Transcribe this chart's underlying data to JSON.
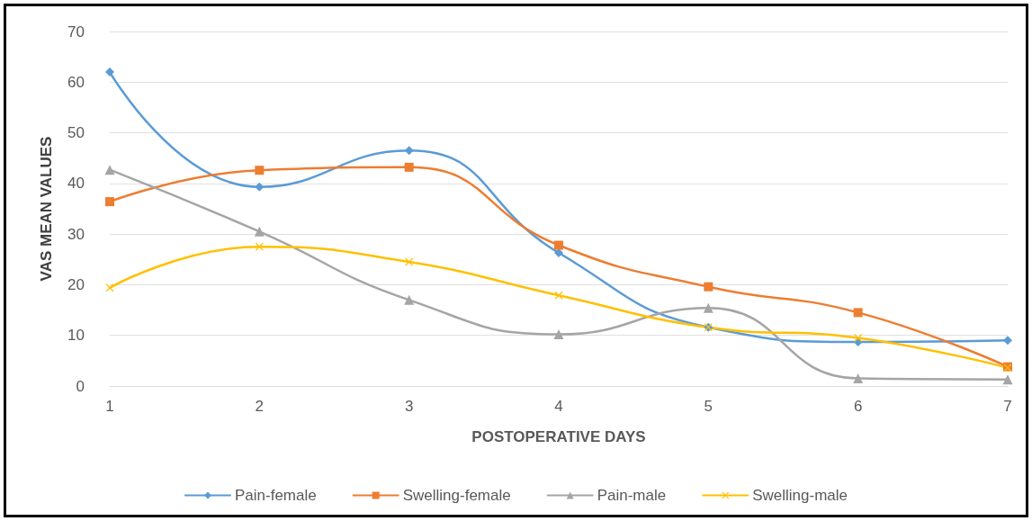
{
  "chart_data": {
    "type": "line",
    "xlabel": "POSTOPERATIVE DAYS",
    "ylabel": "VAS MEAN VALUES",
    "categories": [
      "1",
      "2",
      "3",
      "4",
      "5",
      "6",
      "7"
    ],
    "series": [
      {
        "name": "Pain-female",
        "color": "#5b9bd5",
        "marker": "diamond",
        "values": [
          62,
          39.3,
          46.5,
          26.3,
          11.6,
          8.7,
          9
        ]
      },
      {
        "name": "Swelling-female",
        "color": "#ed7d31",
        "marker": "square",
        "values": [
          36.4,
          42.6,
          43.2,
          27.8,
          19.6,
          14.5,
          3.8
        ]
      },
      {
        "name": "Pain-male",
        "color": "#a5a5a5",
        "marker": "triangle",
        "values": [
          42.7,
          30.5,
          17,
          10.2,
          15.4,
          1.5,
          1.3
        ]
      },
      {
        "name": "Swelling-male",
        "color": "#ffc000",
        "marker": "cross",
        "values": [
          19.4,
          27.5,
          24.5,
          17.9,
          11.6,
          9.5,
          3.6
        ]
      }
    ],
    "ylim": [
      0,
      70
    ],
    "yticks": [
      0,
      10,
      20,
      30,
      40,
      50,
      60,
      70
    ],
    "grid": "y",
    "legend": "bottom",
    "line_style": "solid"
  }
}
